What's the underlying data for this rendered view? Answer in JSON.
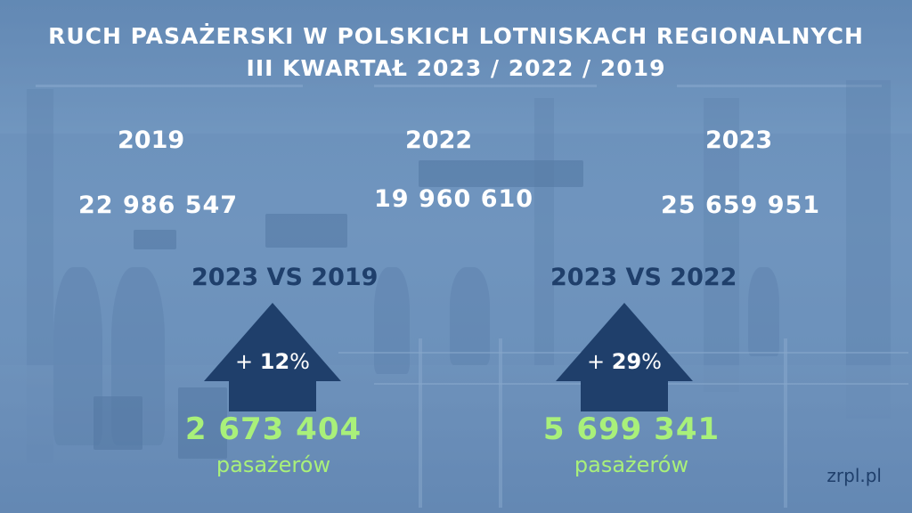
{
  "title": {
    "line1": "RUCH PASAŻERSKI W POLSKICH LOTNISKACH REGIONALNYCH",
    "line2": "III KWARTAŁ 2023 / 2022 / 2019"
  },
  "years": [
    {
      "year": "2019",
      "total": "22 986 547"
    },
    {
      "year": "2022",
      "total": "19 960 610"
    },
    {
      "year": "2023",
      "total": "25 659 951"
    }
  ],
  "comparisons": [
    {
      "label": "2023 VS 2019",
      "sign": "+ ",
      "percent": "12",
      "percent_suffix": "%",
      "difference": "2 673 404",
      "unit": "pasażerów"
    },
    {
      "label": "2023 VS 2022",
      "sign": "+ ",
      "percent": "29",
      "percent_suffix": "%",
      "difference": "5 699 341",
      "unit": "pasażerów"
    }
  ],
  "brand": "zrpl.pl",
  "colors": {
    "arrow": "#1f3f6b",
    "highlight": "#a9f07a",
    "text": "#ffffff",
    "overlay": "#7a9dc4"
  }
}
